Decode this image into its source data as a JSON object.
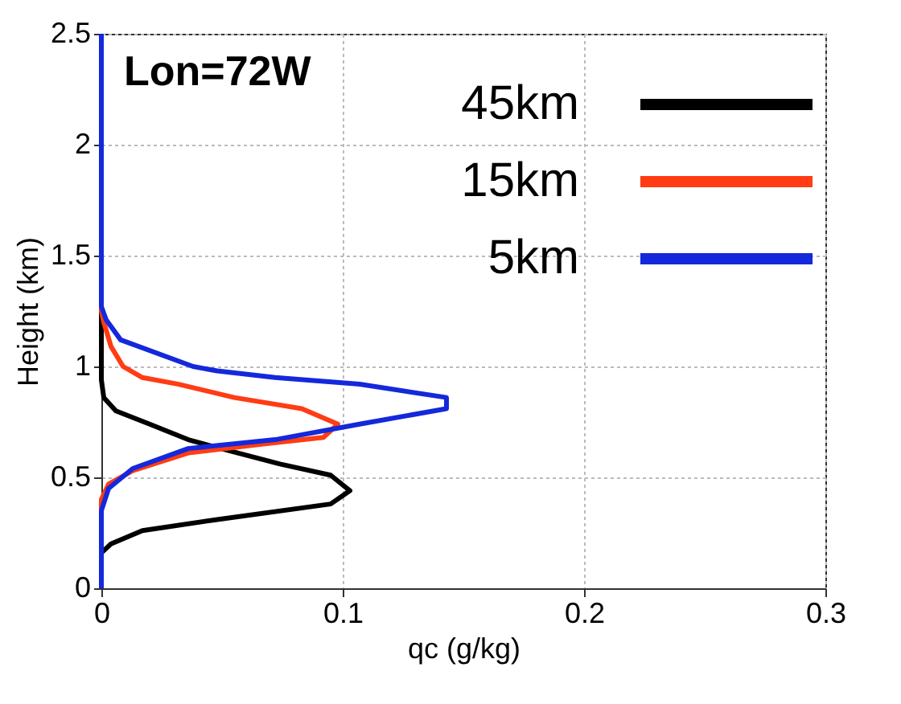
{
  "chart_data": {
    "type": "line",
    "xlabel": "qc (g/kg)",
    "ylabel": "Height (km)",
    "annotations": [
      "Lon=72W"
    ],
    "xlim": [
      0,
      0.3
    ],
    "xticks": [
      0,
      0.1,
      0.2,
      0.3
    ],
    "ylim": [
      0,
      2.5
    ],
    "yticks": [
      0,
      0.5,
      1,
      1.5,
      2,
      2.5
    ],
    "grid": true,
    "legend": "top right",
    "series": [
      {
        "name": "45km",
        "color": "#000000",
        "x": [
          0,
          0,
          0.004,
          0.017,
          0.048,
          0.095,
          0.103,
          0.095,
          0.074,
          0.053,
          0.036,
          0.02,
          0.006,
          0.001,
          0,
          0
        ],
        "values": [
          0,
          0.16,
          0.2,
          0.26,
          0.31,
          0.38,
          0.44,
          0.51,
          0.56,
          0.62,
          0.67,
          0.74,
          0.8,
          0.86,
          0.94,
          2.5
        ]
      },
      {
        "name": "15km",
        "color": "#ff3c14",
        "x": [
          0,
          0,
          0.003,
          0.013,
          0.036,
          0.067,
          0.092,
          0.098,
          0.083,
          0.055,
          0.032,
          0.017,
          0.009,
          0.004,
          0.001,
          0,
          0
        ],
        "values": [
          0,
          0.4,
          0.47,
          0.53,
          0.61,
          0.65,
          0.68,
          0.74,
          0.81,
          0.86,
          0.92,
          0.95,
          1.0,
          1.09,
          1.2,
          1.25,
          2.5
        ]
      },
      {
        "name": "5km",
        "color": "#1428dc",
        "x": [
          0,
          0,
          0.003,
          0.013,
          0.036,
          0.072,
          0.107,
          0.143,
          0.143,
          0.107,
          0.072,
          0.048,
          0.038,
          0.008,
          0.002,
          0,
          0
        ],
        "values": [
          0,
          0.35,
          0.45,
          0.54,
          0.63,
          0.67,
          0.74,
          0.81,
          0.86,
          0.92,
          0.95,
          0.98,
          1.0,
          1.12,
          1.21,
          1.27,
          2.5
        ]
      }
    ]
  }
}
